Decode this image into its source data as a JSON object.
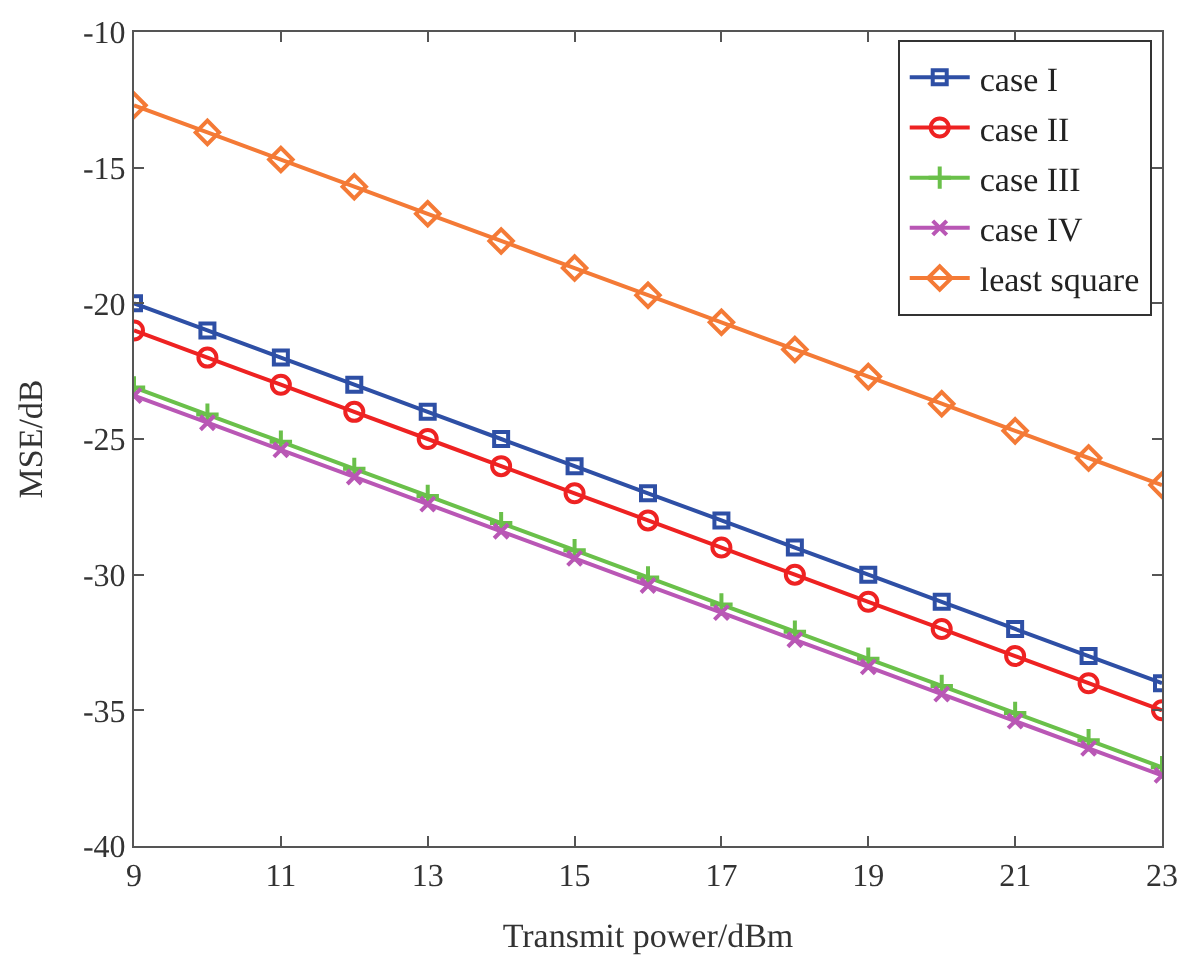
{
  "chart_data": {
    "type": "line",
    "xlabel": "Transmit power/dBm",
    "ylabel": "MSE/dB",
    "x": [
      9,
      10,
      11,
      12,
      13,
      14,
      15,
      16,
      17,
      18,
      19,
      20,
      21,
      22,
      23
    ],
    "xlim": [
      9,
      23
    ],
    "xticks": [
      9,
      11,
      13,
      15,
      17,
      19,
      21,
      23
    ],
    "ylim": [
      -40,
      -10
    ],
    "yticks": [
      -40,
      -35,
      -30,
      -25,
      -20,
      -15,
      -10
    ],
    "grid": false,
    "legend": "top right",
    "series": [
      {
        "name": "case I",
        "color": "#2e4fa5",
        "marker": "square",
        "values": [
          -20,
          -21,
          -22,
          -23,
          -24,
          -25,
          -26,
          -27,
          -28,
          -29,
          -30,
          -31,
          -32,
          -33,
          -34
        ]
      },
      {
        "name": "case II",
        "color": "#ee2222",
        "marker": "circle",
        "values": [
          -21,
          -22,
          -23,
          -24,
          -25,
          -26,
          -27,
          -28,
          -29,
          -30,
          -31,
          -32,
          -33,
          -34,
          -35
        ]
      },
      {
        "name": "case III",
        "color": "#6ac04a",
        "marker": "cross",
        "values": [
          -23.1,
          -24.1,
          -25.1,
          -26.1,
          -27.1,
          -28.1,
          -29.1,
          -30.1,
          -31.1,
          -32.1,
          -33.1,
          -34.1,
          -35.1,
          -36.1,
          -37.1
        ]
      },
      {
        "name": "case IV",
        "color": "#b957b5",
        "marker": "x",
        "values": [
          -23.4,
          -24.4,
          -25.4,
          -26.4,
          -27.4,
          -28.4,
          -29.4,
          -30.4,
          -31.4,
          -32.4,
          -33.4,
          -34.4,
          -35.4,
          -36.4,
          -37.4
        ]
      },
      {
        "name": "least square",
        "color": "#f47a36",
        "marker": "diamond",
        "values": [
          -12.7,
          -13.7,
          -14.7,
          -15.7,
          -16.7,
          -17.7,
          -18.7,
          -19.7,
          -20.7,
          -21.7,
          -22.7,
          -23.7,
          -24.7,
          -25.7,
          -26.7
        ]
      }
    ]
  }
}
